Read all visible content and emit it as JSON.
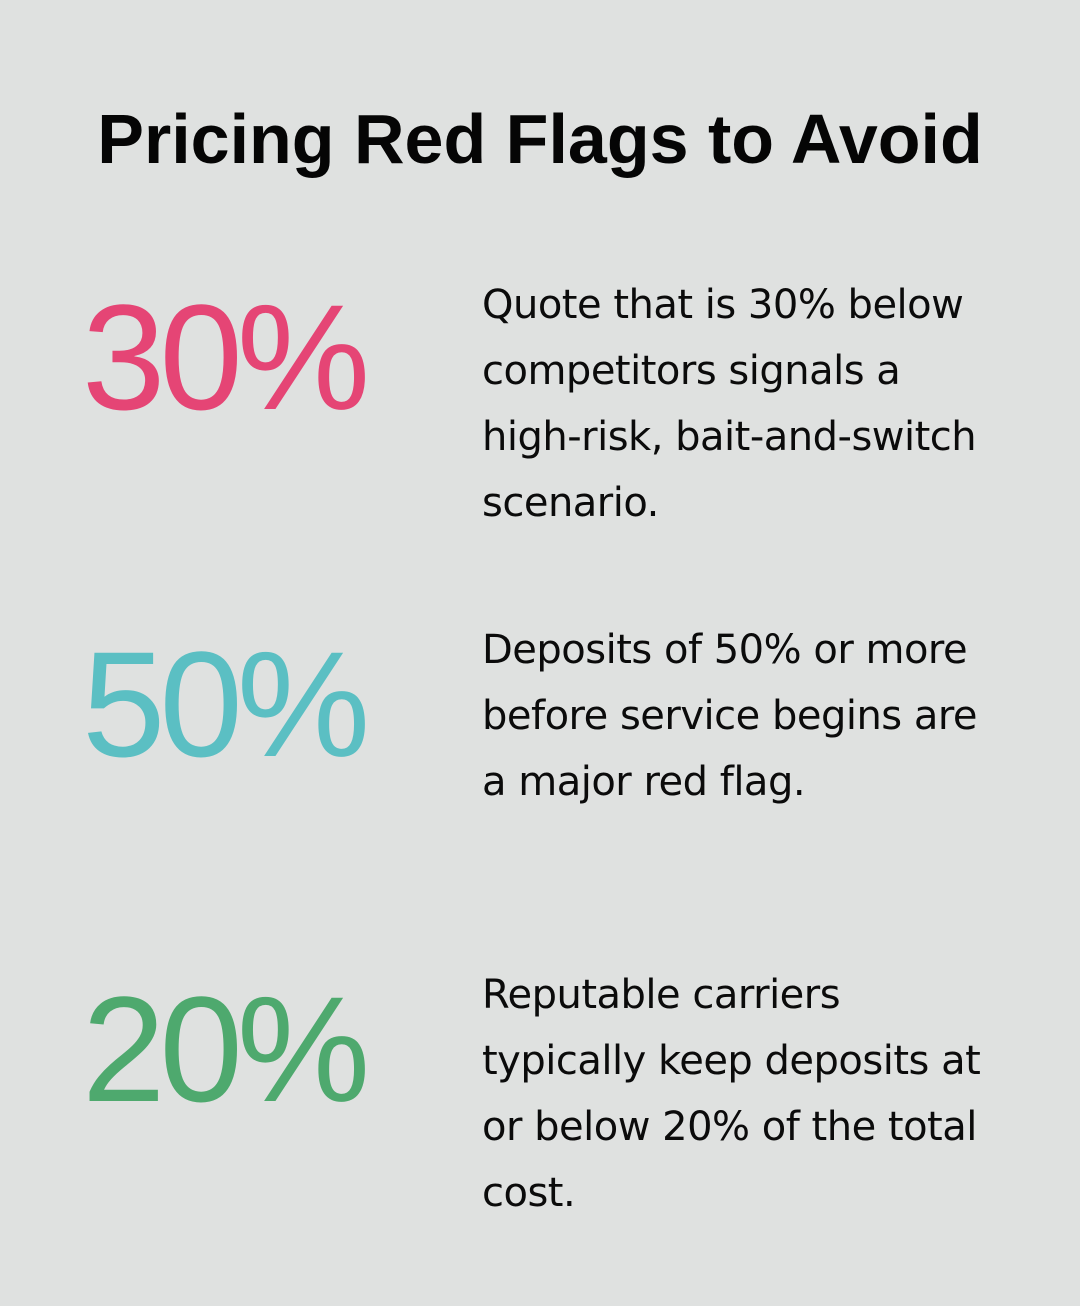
{
  "header": {
    "title": "Pricing Red Flags to Avoid"
  },
  "colors": {
    "background": "#dfe1e0",
    "stat_1": "#e54575",
    "stat_2": "#5bbfc3",
    "stat_3": "#4ea96e"
  },
  "stats": [
    {
      "value": "30%",
      "color": "#e54575",
      "description": "Quote that is 30% below competitors signals a high-risk, bait-and-switch scenario."
    },
    {
      "value": "50%",
      "color": "#5bbfc3",
      "description": "Deposits of 50% or more before service begins are a major red flag."
    },
    {
      "value": "20%",
      "color": "#4ea96e",
      "description": "Reputable carriers typically keep deposits at or below 20% of the total cost."
    }
  ]
}
